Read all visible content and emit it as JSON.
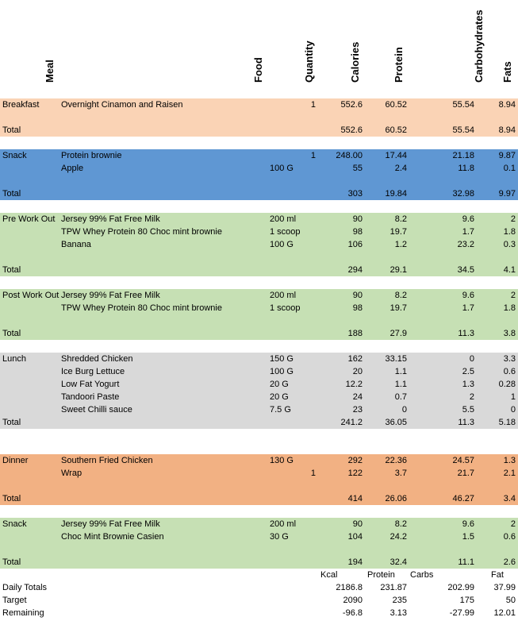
{
  "headers": {
    "meal": "Meal",
    "food": "Food",
    "quantity": "Quantity",
    "calories": "Calories",
    "protein": "Protein",
    "carbs": "Carbohydrates",
    "fats": "Fats"
  },
  "colors": {
    "breakfast": "#fad3b5",
    "snack1": "#5f97d3",
    "workout": "#c6e0b4",
    "lunch": "#d9d9d9",
    "dinner": "#f2b183",
    "snack2": "#c6e0b4"
  },
  "sections": [
    {
      "color": "breakfast",
      "rows": [
        {
          "meal": "Breakfast",
          "food": "Overnight Cinamon and Raisen",
          "unit": "",
          "qty": "1",
          "cal": "552.6",
          "pro": "60.52",
          "carb": "55.54",
          "fat": "8.94"
        }
      ],
      "total": {
        "label": "Total",
        "cal": "552.6",
        "pro": "60.52",
        "carb": "55.54",
        "fat": "8.94"
      }
    },
    {
      "color": "snack1",
      "rows": [
        {
          "meal": "Snack",
          "food": "Protein brownie",
          "unit": "",
          "qty": "1",
          "cal": "248.00",
          "pro": "17.44",
          "carb": "21.18",
          "fat": "9.87"
        },
        {
          "meal": "",
          "food": "Apple",
          "unit": "100 G",
          "qty": "",
          "cal": "55",
          "pro": "2.4",
          "carb": "11.8",
          "fat": "0.1"
        }
      ],
      "total": {
        "label": "Total",
        "cal": "303",
        "pro": "19.84",
        "carb": "32.98",
        "fat": "9.97"
      }
    },
    {
      "color": "workout",
      "rows": [
        {
          "meal": "Pre Work Out",
          "food": "Jersey 99% Fat Free Milk",
          "unit": "200 ml",
          "qty": "",
          "cal": "90",
          "pro": "8.2",
          "carb": "9.6",
          "fat": "2"
        },
        {
          "meal": "",
          "food": "TPW Whey Protein 80 Choc mint brownie",
          "unit": "1 scoop",
          "qty": "",
          "cal": "98",
          "pro": "19.7",
          "carb": "1.7",
          "fat": "1.8"
        },
        {
          "meal": "",
          "food": "Banana",
          "unit": "100 G",
          "qty": "",
          "cal": "106",
          "pro": "1.2",
          "carb": "23.2",
          "fat": "0.3"
        }
      ],
      "total": {
        "label": "Total",
        "cal": "294",
        "pro": "29.1",
        "carb": "34.5",
        "fat": "4.1"
      }
    },
    {
      "color": "workout",
      "rows": [
        {
          "meal": "Post Work Out",
          "food": "Jersey 99% Fat Free Milk",
          "unit": "200 ml",
          "qty": "",
          "cal": "90",
          "pro": "8.2",
          "carb": "9.6",
          "fat": "2"
        },
        {
          "meal": "",
          "food": "TPW Whey Protein 80 Choc mint brownie",
          "unit": "1 scoop",
          "qty": "",
          "cal": "98",
          "pro": "19.7",
          "carb": "1.7",
          "fat": "1.8"
        }
      ],
      "total": {
        "label": "Total",
        "cal": "188",
        "pro": "27.9",
        "carb": "11.3",
        "fat": "3.8"
      }
    },
    {
      "color": "lunch",
      "rows": [
        {
          "meal": "Lunch",
          "food": "Shredded Chicken",
          "unit": "150 G",
          "qty": "",
          "cal": "162",
          "pro": "33.15",
          "carb": "0",
          "fat": "3.3"
        },
        {
          "meal": "",
          "food": "Ice Burg Lettuce",
          "unit": "100 G",
          "qty": "",
          "cal": "20",
          "pro": "1.1",
          "carb": "2.5",
          "fat": "0.6"
        },
        {
          "meal": "",
          "food": "Low Fat Yogurt",
          "unit": "20 G",
          "qty": "",
          "cal": "12.2",
          "pro": "1.1",
          "carb": "1.3",
          "fat": "0.28"
        },
        {
          "meal": "",
          "food": "Tandoori Paste",
          "unit": "20 G",
          "qty": "",
          "cal": "24",
          "pro": "0.7",
          "carb": "2",
          "fat": "1"
        },
        {
          "meal": "",
          "food": "Sweet  Chilli sauce",
          "unit": "7.5 G",
          "qty": "",
          "cal": "23",
          "pro": "0",
          "carb": "5.5",
          "fat": "0"
        }
      ],
      "total": {
        "label": "Total",
        "cal": "241.2",
        "pro": "36.05",
        "carb": "11.3",
        "fat": "5.18"
      }
    },
    {
      "color": "dinner",
      "rows": [
        {
          "meal": "Dinner",
          "food": "Southern Fried Chicken",
          "unit": "130 G",
          "qty": "",
          "cal": "292",
          "pro": "22.36",
          "carb": "24.57",
          "fat": "1.3"
        },
        {
          "meal": "",
          "food": "Wrap",
          "unit": "",
          "qty": "1",
          "cal": "122",
          "pro": "3.7",
          "carb": "21.7",
          "fat": "2.1"
        }
      ],
      "total": {
        "label": "Total",
        "cal": "414",
        "pro": "26.06",
        "carb": "46.27",
        "fat": "3.4"
      }
    },
    {
      "color": "snack2",
      "rows": [
        {
          "meal": "Snack",
          "food": "Jersey 99% Fat Free Milk",
          "unit": "200 ml",
          "qty": "",
          "cal": "90",
          "pro": "8.2",
          "carb": "9.6",
          "fat": "2"
        },
        {
          "meal": "",
          "food": "Choc Mint Brownie Casien",
          "unit": "30 G",
          "qty": "",
          "cal": "104",
          "pro": "24.2",
          "carb": "1.5",
          "fat": "0.6"
        }
      ],
      "total": {
        "label": "Total",
        "cal": "194",
        "pro": "32.4",
        "carb": "11.1",
        "fat": "2.6"
      }
    }
  ],
  "summary": {
    "headers": {
      "kcal": "Kcal",
      "protein": "Protein",
      "carbs": "Carbs",
      "fat": "Fat"
    },
    "rows": [
      {
        "label": "Daily Totals",
        "cal": "2186.8",
        "pro": "231.87",
        "carb": "202.99",
        "fat": "37.99"
      },
      {
        "label": "Target",
        "cal": "2090",
        "pro": "235",
        "carb": "175",
        "fat": "50"
      },
      {
        "label": "Remaining",
        "cal": "-96.8",
        "pro": "3.13",
        "carb": "-27.99",
        "fat": "12.01"
      }
    ]
  }
}
